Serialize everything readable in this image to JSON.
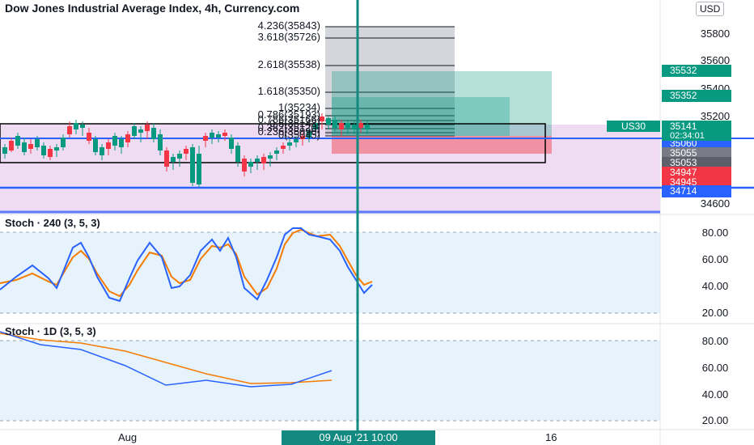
{
  "chart_title": "Dow Jones Industrial Average Index, 4h, Currency.com",
  "currency": "USD",
  "symbol": "US30",
  "last_price": "35141",
  "countdown": "02:34:01",
  "price_axis": [
    "35800",
    "35600",
    "35400",
    "35200",
    "34600"
  ],
  "price_tags": [
    {
      "text": "35532",
      "color": "#089981"
    },
    {
      "text": "35352",
      "color": "#089981"
    },
    {
      "text": "35060",
      "color": "#2962ff"
    },
    {
      "text": "35055",
      "color": "#787b86"
    },
    {
      "text": "35053",
      "color": "#5d606b"
    },
    {
      "text": "34947",
      "color": "#f23645"
    },
    {
      "text": "34945",
      "color": "#f23645"
    },
    {
      "text": "34714",
      "color": "#2962ff"
    }
  ],
  "fib_levels": [
    "4.236(35843)",
    "3.618(35726)",
    "2.618(35538)",
    "1.618(35350)",
    "1(35234)",
    "0.786(35193)",
    "0.786(35166)",
    "0.5(35143)",
    "0.382(35120)",
    "0.236(35090)",
    "0(35045)"
  ],
  "stoch240": {
    "title": "Stoch · 240 (3, 5, 3)",
    "axis": [
      "80.00",
      "60.00",
      "40.00",
      "20.00"
    ]
  },
  "stoch1d": {
    "title": "Stoch · 1D (3, 5, 3)",
    "axis": [
      "80.00",
      "60.00",
      "40.00",
      "20.00"
    ]
  },
  "time_axis": {
    "aug": "Aug",
    "sixteen": "16",
    "current": "09 Aug '21   10:00"
  },
  "colors": {
    "up": "#089981",
    "down": "#f23645",
    "k": "#2962ff",
    "d": "#f57c00",
    "band": "#e1bee7"
  }
}
